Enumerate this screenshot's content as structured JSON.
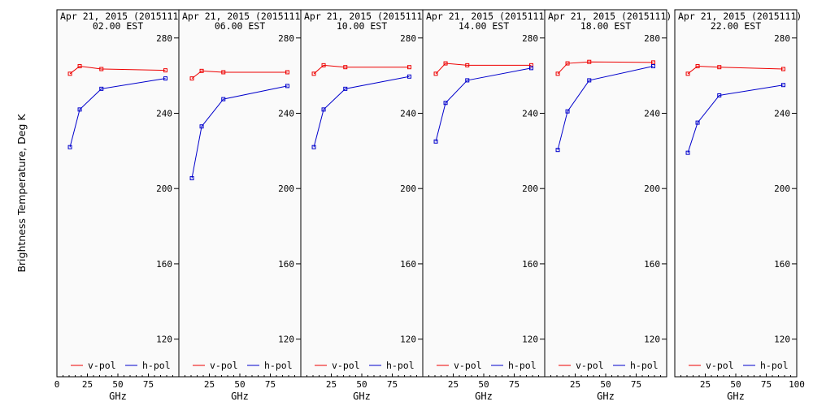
{
  "colors": {
    "v_pol": "#ee0000",
    "h_pol": "#0000cc",
    "background": "#fafafa"
  },
  "chart_data": {
    "type": "line",
    "ylabel": "Brightness Temperature, Deg K",
    "xlabel": "GHz",
    "xlim": [
      0,
      100
    ],
    "ylim": [
      100,
      295
    ],
    "xticks": [
      0,
      25,
      50,
      75,
      100
    ],
    "yticks": [
      120,
      160,
      200,
      240,
      280
    ],
    "legend": [
      "v-pol",
      "h-pol"
    ],
    "legend_position": "bottom",
    "panels": [
      {
        "title": "Apr 21, 2015 (2015111)",
        "subtitle": "02.00 EST",
        "series": [
          {
            "name": "v-pol",
            "x": [
              10.7,
              18.7,
              36.5,
              89
            ],
            "y": [
              261,
              265,
              263.5,
              262.8
            ]
          },
          {
            "name": "h-pol",
            "x": [
              10.7,
              18.7,
              36.5,
              89
            ],
            "y": [
              222,
              242,
              253,
              258.5
            ]
          }
        ]
      },
      {
        "title": "Apr 21, 2015 (2015111)",
        "subtitle": "06.00 EST",
        "series": [
          {
            "name": "v-pol",
            "x": [
              10.7,
              18.7,
              36.5,
              89
            ],
            "y": [
              258.5,
              262.5,
              261.8,
              261.8
            ]
          },
          {
            "name": "h-pol",
            "x": [
              10.7,
              18.7,
              36.5,
              89
            ],
            "y": [
              205.5,
              233,
              247.5,
              254.5
            ]
          }
        ]
      },
      {
        "title": "Apr 21, 2015 (2015111)",
        "subtitle": "10.00 EST",
        "series": [
          {
            "name": "v-pol",
            "x": [
              10.7,
              18.7,
              36.5,
              89
            ],
            "y": [
              261,
              265.5,
              264.5,
              264.5
            ]
          },
          {
            "name": "h-pol",
            "x": [
              10.7,
              18.7,
              36.5,
              89
            ],
            "y": [
              222,
              242,
              253,
              259.5
            ]
          }
        ]
      },
      {
        "title": "Apr 21, 2015 (2015111)",
        "subtitle": "14.00 EST",
        "series": [
          {
            "name": "v-pol",
            "x": [
              10.7,
              18.7,
              36.5,
              89
            ],
            "y": [
              261,
              266.5,
              265.5,
              265.5
            ]
          },
          {
            "name": "h-pol",
            "x": [
              10.7,
              18.7,
              36.5,
              89
            ],
            "y": [
              225,
              245.5,
              257.5,
              264
            ]
          }
        ]
      },
      {
        "title": "Apr 21, 2015 (2015111)",
        "subtitle": "18.00 EST",
        "series": [
          {
            "name": "v-pol",
            "x": [
              10.7,
              18.7,
              36.5,
              89
            ],
            "y": [
              261,
              266.5,
              267.3,
              267
            ]
          },
          {
            "name": "h-pol",
            "x": [
              10.7,
              18.7,
              36.5,
              89
            ],
            "y": [
              220.5,
              241,
              257.5,
              265
            ]
          }
        ]
      },
      {
        "title": "Apr 21, 2015 (2015111)",
        "subtitle": "22.00 EST",
        "series": [
          {
            "name": "v-pol",
            "x": [
              10.7,
              18.7,
              36.5,
              89
            ],
            "y": [
              261,
              265,
              264.5,
              263.5
            ]
          },
          {
            "name": "h-pol",
            "x": [
              10.7,
              18.7,
              36.5,
              89
            ],
            "y": [
              219,
              235,
              249.5,
              255
            ]
          }
        ]
      }
    ]
  }
}
